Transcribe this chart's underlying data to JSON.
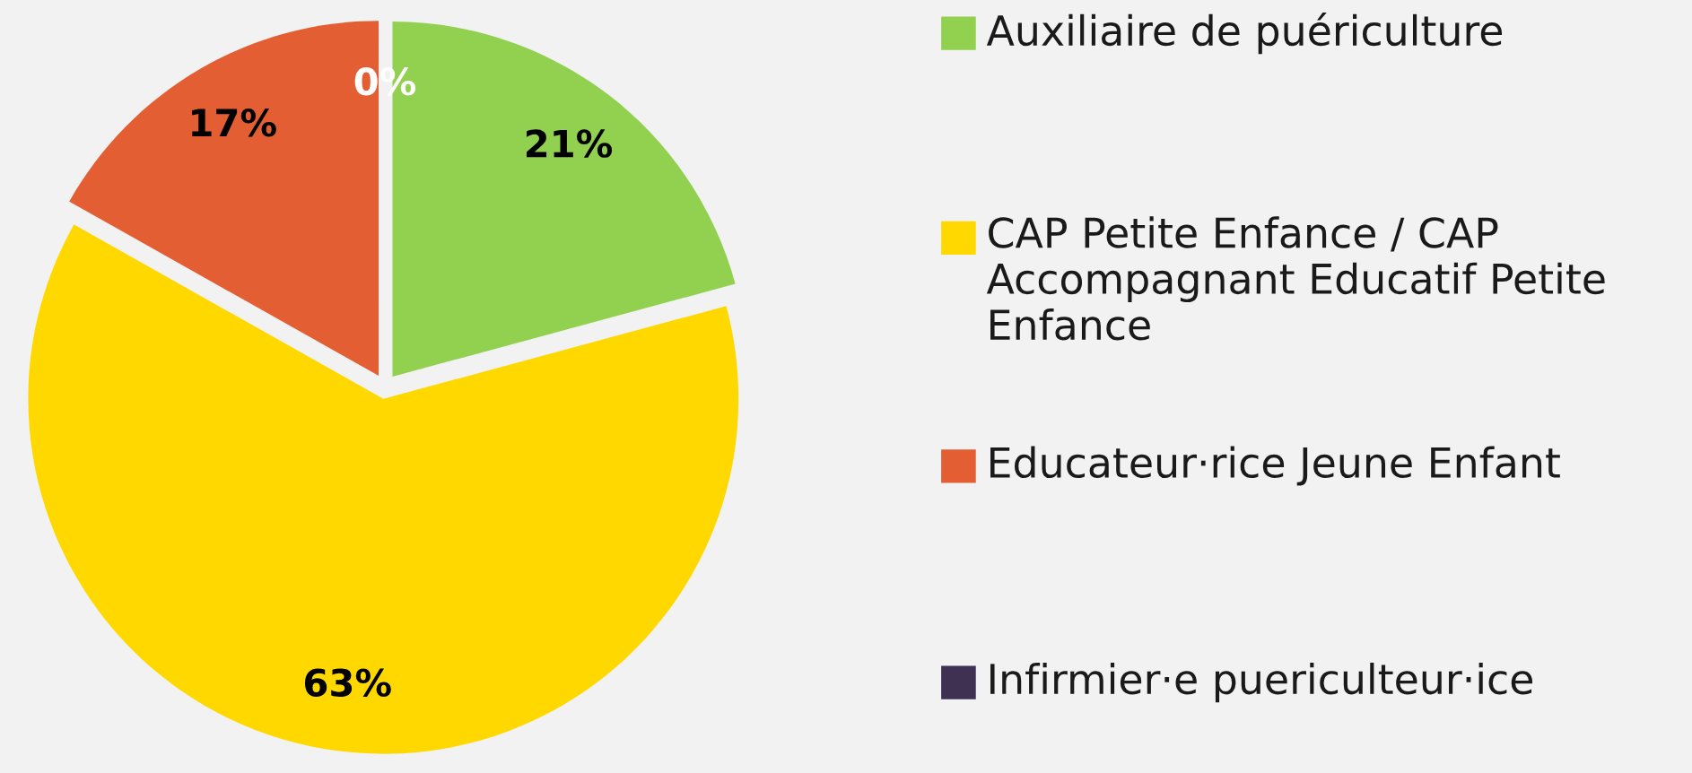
{
  "chart_data": {
    "type": "pie",
    "categories": [
      "Auxiliaire de puériculture",
      "CAP Petite Enfance / CAP Accompagnant Educatif Petite Enfance",
      "Educateur·rice Jeune Enfant",
      "Infirmier·e puericulteur·ice"
    ],
    "values": [
      21,
      63,
      17,
      0
    ],
    "colors": [
      "#92d050",
      "#ffd800",
      "#e35f33",
      "#3f3151"
    ],
    "value_labels": [
      "21%",
      "63%",
      "17%",
      "0%"
    ],
    "legend": "right"
  }
}
